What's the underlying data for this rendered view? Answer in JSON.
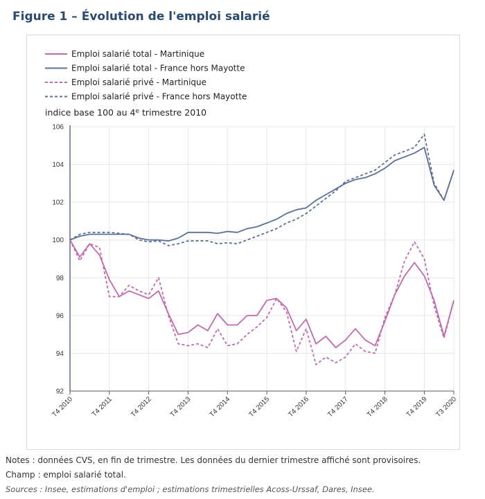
{
  "figure": {
    "title": "Figure 1 – Évolution de l'emploi salarié"
  },
  "notes": {
    "line1": "Notes : données CVS, en fin de trimestre. Les données du dernier trimestre affiché sont provisoires.",
    "line2": "Champ : emploi salarié total.",
    "sources": "Sources : Insee, estimations d'emploi ; estimations trimestrielles Acoss-Urssaf, Dares, Insee."
  },
  "chart_data": {
    "type": "line",
    "title": "Figure 1 – Évolution de l'emploi salarié",
    "ylabel": "indice base 100 au 4e trimestre 2010",
    "ylabel_main": "indice base 100 au 4",
    "ylabel_sup": "e",
    "ylabel_end": " trimestre 2010",
    "ylim": [
      92,
      106
    ],
    "yticks": [
      92,
      94,
      96,
      98,
      100,
      102,
      104,
      106
    ],
    "xticks": [
      {
        "index": 0,
        "label": "T4 2010"
      },
      {
        "index": 4,
        "label": "T4 2011"
      },
      {
        "index": 8,
        "label": "T4 2012"
      },
      {
        "index": 12,
        "label": "T4 2013"
      },
      {
        "index": 16,
        "label": "T4 2014"
      },
      {
        "index": 20,
        "label": "T4 2015"
      },
      {
        "index": 24,
        "label": "T4 2016"
      },
      {
        "index": 28,
        "label": "T4 2017"
      },
      {
        "index": 32,
        "label": "T4 2018"
      },
      {
        "index": 36,
        "label": "T4 2019"
      },
      {
        "index": 39,
        "label": "T3 2020"
      }
    ],
    "n_points": 40,
    "legend_position": "top-left",
    "series": [
      {
        "name": "Emploi salarié total - Martinique",
        "color": "#c069b0",
        "dash": "solid",
        "values": [
          100.0,
          99.1,
          99.8,
          99.2,
          97.9,
          97.0,
          97.3,
          97.1,
          96.9,
          97.3,
          96.1,
          95.0,
          95.1,
          95.5,
          95.2,
          96.1,
          95.5,
          95.5,
          96.0,
          96.0,
          96.8,
          96.9,
          96.4,
          95.2,
          95.8,
          94.5,
          94.9,
          94.3,
          94.7,
          95.3,
          94.7,
          94.4,
          95.7,
          97.1,
          98.1,
          98.8,
          98.1,
          96.8,
          94.9,
          96.8
        ]
      },
      {
        "name": "Emploi salarié total - France hors Mayotte",
        "color": "#5b6f95",
        "dash": "solid",
        "values": [
          100.0,
          100.2,
          100.3,
          100.3,
          100.3,
          100.3,
          100.3,
          100.1,
          100.0,
          100.0,
          99.95,
          100.1,
          100.4,
          100.4,
          100.4,
          100.35,
          100.45,
          100.4,
          100.6,
          100.7,
          100.9,
          101.1,
          101.4,
          101.6,
          101.7,
          102.1,
          102.4,
          102.7,
          103.0,
          103.2,
          103.3,
          103.5,
          103.8,
          104.2,
          104.4,
          104.6,
          104.9,
          102.9,
          102.1,
          103.7
        ]
      },
      {
        "name": "Emploi salarié privé - Martinique",
        "color": "#c069b0",
        "dash": "dashed",
        "values": [
          100.0,
          98.9,
          99.8,
          99.6,
          97.0,
          97.0,
          97.6,
          97.3,
          97.1,
          98.0,
          96.0,
          94.5,
          94.4,
          94.5,
          94.3,
          95.3,
          94.4,
          94.5,
          95.0,
          95.4,
          95.9,
          96.9,
          96.2,
          94.1,
          95.3,
          93.4,
          93.8,
          93.5,
          93.8,
          94.5,
          94.1,
          94.0,
          95.9,
          97.1,
          98.9,
          99.9,
          99.0,
          96.5,
          94.8,
          96.8
        ]
      },
      {
        "name": "Emploi salarié privé - France hors Mayotte",
        "color": "#5b6f95",
        "dash": "dashed",
        "values": [
          100.0,
          100.3,
          100.4,
          100.4,
          100.4,
          100.35,
          100.3,
          100.0,
          99.9,
          99.95,
          99.7,
          99.8,
          99.95,
          99.95,
          99.95,
          99.8,
          99.85,
          99.8,
          100.0,
          100.2,
          100.4,
          100.6,
          100.9,
          101.1,
          101.4,
          101.8,
          102.2,
          102.6,
          103.1,
          103.3,
          103.5,
          103.7,
          104.1,
          104.5,
          104.7,
          104.9,
          105.6,
          103.0,
          102.1,
          103.7
        ]
      }
    ]
  }
}
